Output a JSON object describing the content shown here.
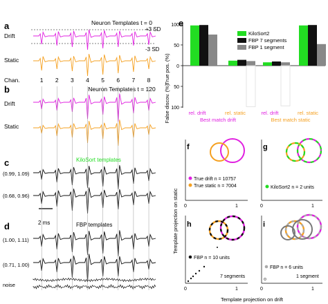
{
  "panels": {
    "a": {
      "letter": "a",
      "title": "Neuron Templates t = 0",
      "plus_sd": "+3 SD",
      "minus_sd": "-3 SD",
      "row_drift": "Drift",
      "row_static": "Static",
      "chan_label": "Chan.",
      "channels": [
        "1",
        "2",
        "3",
        "4",
        "5",
        "6",
        "7",
        "8"
      ]
    },
    "b": {
      "letter": "b",
      "title": "Neuron Templates t = 120",
      "row_drift": "Drift",
      "row_static": "Static"
    },
    "c": {
      "letter": "c",
      "title": "KiloSort templates",
      "row1": "(0.99, 1.09)",
      "row2": "(0.68, 0.96)",
      "scale": "2 ms"
    },
    "d": {
      "letter": "d",
      "title": "FBP templates",
      "row1": "(1.00, 1.11)",
      "row2": "(0.71, 1.00)",
      "noise": "noise"
    },
    "e": {
      "letter": "e"
    },
    "f": {
      "letter": "f",
      "legend": [
        "True drift n = 10757",
        "True static n = 7004"
      ]
    },
    "g": {
      "letter": "g",
      "legend": [
        "KiloSort2 n = 2 units"
      ]
    },
    "h": {
      "letter": "h",
      "legend": [
        "FBP n = 10 units"
      ],
      "note": "7 segments"
    },
    "i": {
      "letter": "i",
      "legend": [
        "FBP n = 6 units"
      ],
      "note": "1 segment"
    },
    "scatter_ylabel": "Template projection on static",
    "scatter_xlabel": "Template projection on drift",
    "ticks": {
      "zero": "0",
      "one": "1"
    }
  },
  "colors": {
    "drift": "#e020e0",
    "static": "#f5a020",
    "kilosort": "#22dd22",
    "fbp7": "#111111",
    "fbp1": "#888888"
  },
  "chart_data": {
    "type": "bar",
    "categories": [
      "rel. drift",
      "rel. static",
      "rel. drift",
      "rel. static"
    ],
    "group_labels": [
      "Best match drift",
      "Best match static"
    ],
    "ylabel_top": "True pos. (%)",
    "ylabel_bottom": "False discov. (%)",
    "yticks_top": [
      "100",
      "50",
      "0"
    ],
    "yticks_bottom": [
      "50",
      "100"
    ],
    "legend": [
      "KiloSort2",
      "FBP 7 segments",
      "FBP 1 segment"
    ],
    "series": [
      {
        "name": "KiloSort2",
        "true_pos": [
          97,
          12,
          8,
          97
        ],
        "false_discov": [
          0,
          0,
          0,
          0
        ]
      },
      {
        "name": "FBP 7 segments",
        "true_pos": [
          98,
          14,
          10,
          98
        ],
        "false_discov": [
          0,
          0,
          0,
          0
        ]
      },
      {
        "name": "FBP 1 segment",
        "true_pos": [
          75,
          11,
          8,
          52
        ],
        "false_discov": [
          0,
          99,
          97,
          0
        ]
      }
    ]
  }
}
